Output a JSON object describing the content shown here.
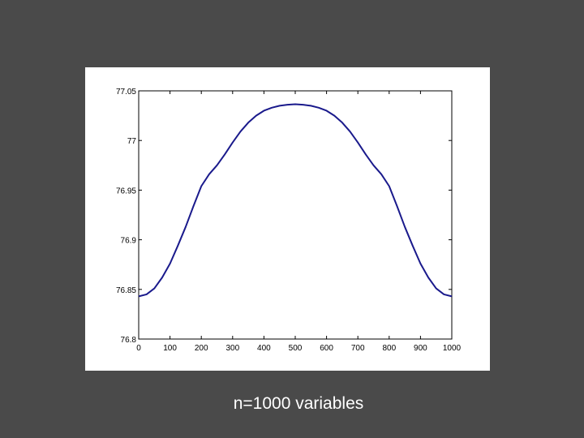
{
  "caption": "n=1000 variables",
  "colors": {
    "background": "#4a4a4a",
    "figure_background": "#ffffff",
    "line": "#1a1a8c",
    "axes": "#000000",
    "caption": "#ffffff"
  },
  "chart_data": {
    "type": "line",
    "title": "",
    "xlabel": "",
    "ylabel": "",
    "xlim": [
      0,
      1000
    ],
    "ylim": [
      76.8,
      77.05
    ],
    "grid": false,
    "x_ticks": [
      0,
      100,
      200,
      300,
      400,
      500,
      600,
      700,
      800,
      900,
      1000
    ],
    "x_tick_labels": [
      "0",
      "100",
      "200",
      "300",
      "400",
      "500",
      "600",
      "700",
      "800",
      "900",
      "1000"
    ],
    "y_ticks": [
      76.8,
      76.85,
      76.9,
      76.95,
      77,
      77.05
    ],
    "y_tick_labels": [
      "76.8",
      "76.85",
      "76.9",
      "76.95",
      "77",
      "77.05"
    ],
    "series": [
      {
        "x": [
          0,
          25,
          50,
          75,
          100,
          125,
          150,
          175,
          200,
          225,
          250,
          275,
          300,
          325,
          350,
          375,
          400,
          425,
          450,
          475,
          500,
          525,
          550,
          575,
          600,
          625,
          650,
          675,
          700,
          725,
          750,
          775,
          800,
          825,
          850,
          875,
          900,
          925,
          950,
          975,
          1000
        ],
        "y": [
          76.843,
          76.845,
          76.851,
          76.862,
          76.876,
          76.894,
          76.913,
          76.934,
          76.954,
          76.966,
          76.975,
          76.986,
          76.998,
          77.009,
          77.018,
          77.025,
          77.03,
          77.033,
          77.035,
          77.036,
          77.0365,
          77.036,
          77.035,
          77.033,
          77.03,
          77.025,
          77.018,
          77.009,
          76.998,
          76.986,
          76.975,
          76.966,
          76.954,
          76.934,
          76.913,
          76.894,
          76.876,
          76.862,
          76.851,
          76.845,
          76.843
        ]
      }
    ]
  }
}
